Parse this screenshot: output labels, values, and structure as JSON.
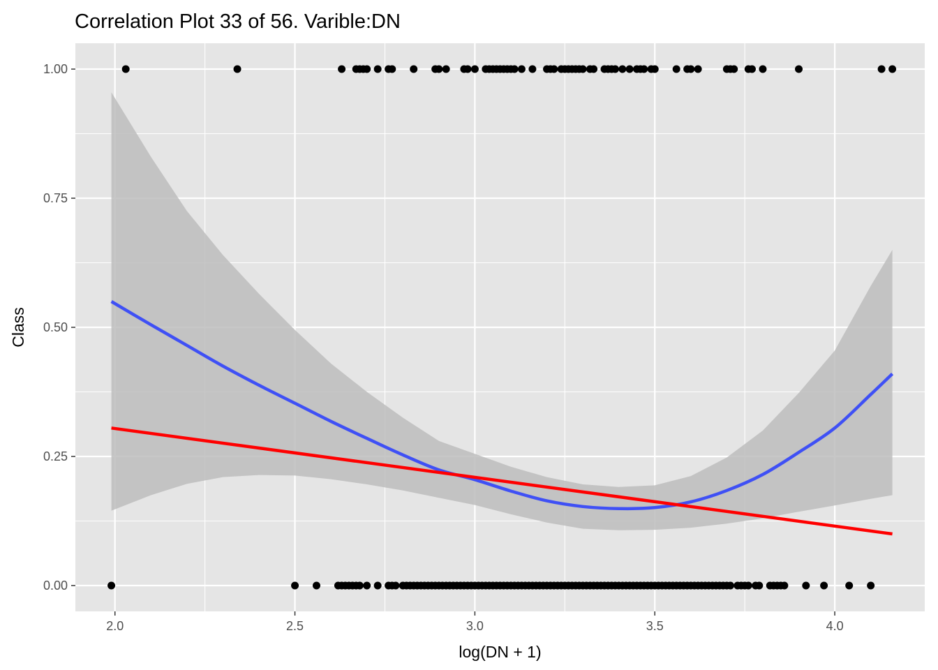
{
  "chart_data": {
    "type": "scatter",
    "title": "Correlation Plot 33 of 56. Varible:DN",
    "xlabel": "log(DN + 1)",
    "ylabel": "Class",
    "xlim": [
      1.89,
      4.25
    ],
    "ylim": [
      -0.05,
      1.05
    ],
    "x_ticks": [
      2.0,
      2.5,
      3.0,
      3.5,
      4.0
    ],
    "x_tick_labels": [
      "2.0",
      "2.5",
      "3.0",
      "3.5",
      "4.0"
    ],
    "y_ticks": [
      0.0,
      0.25,
      0.5,
      0.75,
      1.0
    ],
    "y_tick_labels": [
      "0.00",
      "0.25",
      "0.50",
      "0.75",
      "1.00"
    ],
    "grid": true,
    "colors": {
      "panel_background": "#e5e5e5",
      "grid": "#ffffff",
      "points": "#000000",
      "smooth_line": "#3f50f5",
      "linear_fit": "#ff0000",
      "ribbon": "#bdbdbd"
    },
    "points_class_1": [
      2.03,
      2.34,
      2.63,
      2.67,
      2.68,
      2.69,
      2.7,
      2.73,
      2.76,
      2.77,
      2.83,
      2.89,
      2.9,
      2.92,
      2.97,
      2.98,
      3.0,
      3.03,
      3.04,
      3.05,
      3.06,
      3.07,
      3.08,
      3.09,
      3.1,
      3.11,
      3.13,
      3.16,
      3.2,
      3.21,
      3.22,
      3.24,
      3.25,
      3.26,
      3.27,
      3.28,
      3.29,
      3.3,
      3.32,
      3.33,
      3.36,
      3.37,
      3.38,
      3.39,
      3.41,
      3.43,
      3.45,
      3.46,
      3.47,
      3.49,
      3.5,
      3.56,
      3.59,
      3.6,
      3.62,
      3.7,
      3.71,
      3.72,
      3.76,
      3.77,
      3.8,
      3.9,
      4.13,
      4.16
    ],
    "points_class_0": [
      1.99,
      2.5,
      2.56,
      2.62,
      2.63,
      2.64,
      2.65,
      2.66,
      2.67,
      2.68,
      2.7,
      2.73,
      2.76,
      2.77,
      2.78,
      2.8,
      2.81,
      2.82,
      2.83,
      2.84,
      2.85,
      2.86,
      2.87,
      2.88,
      2.89,
      2.9,
      2.91,
      2.92,
      2.93,
      2.94,
      2.95,
      2.96,
      2.97,
      2.98,
      2.99,
      3.0,
      3.01,
      3.02,
      3.03,
      3.04,
      3.05,
      3.06,
      3.07,
      3.08,
      3.09,
      3.1,
      3.11,
      3.12,
      3.13,
      3.14,
      3.15,
      3.16,
      3.17,
      3.18,
      3.19,
      3.2,
      3.21,
      3.22,
      3.23,
      3.24,
      3.25,
      3.26,
      3.27,
      3.28,
      3.29,
      3.3,
      3.31,
      3.32,
      3.33,
      3.34,
      3.35,
      3.36,
      3.37,
      3.38,
      3.39,
      3.4,
      3.41,
      3.42,
      3.43,
      3.44,
      3.45,
      3.46,
      3.47,
      3.48,
      3.49,
      3.5,
      3.51,
      3.52,
      3.53,
      3.54,
      3.55,
      3.56,
      3.57,
      3.58,
      3.59,
      3.6,
      3.61,
      3.62,
      3.63,
      3.64,
      3.65,
      3.66,
      3.67,
      3.68,
      3.69,
      3.7,
      3.71,
      3.73,
      3.74,
      3.75,
      3.76,
      3.78,
      3.79,
      3.82,
      3.83,
      3.84,
      3.85,
      3.86,
      3.92,
      3.97,
      4.04,
      4.1
    ],
    "smooth_line": {
      "x": [
        1.99,
        2.1,
        2.2,
        2.3,
        2.4,
        2.5,
        2.6,
        2.7,
        2.8,
        2.9,
        3.0,
        3.1,
        3.2,
        3.3,
        3.4,
        3.5,
        3.6,
        3.7,
        3.8,
        3.9,
        4.0,
        4.1,
        4.16
      ],
      "y": [
        0.55,
        0.505,
        0.465,
        0.425,
        0.388,
        0.353,
        0.318,
        0.285,
        0.253,
        0.224,
        0.205,
        0.183,
        0.164,
        0.153,
        0.149,
        0.151,
        0.162,
        0.184,
        0.215,
        0.258,
        0.305,
        0.37,
        0.41
      ],
      "ci_lower": [
        0.145,
        0.175,
        0.197,
        0.21,
        0.214,
        0.213,
        0.206,
        0.196,
        0.184,
        0.17,
        0.156,
        0.138,
        0.122,
        0.11,
        0.107,
        0.108,
        0.112,
        0.12,
        0.13,
        0.143,
        0.155,
        0.168,
        0.175
      ],
      "ci_upper": [
        0.955,
        0.83,
        0.725,
        0.64,
        0.565,
        0.495,
        0.43,
        0.375,
        0.325,
        0.28,
        0.255,
        0.23,
        0.21,
        0.196,
        0.191,
        0.194,
        0.212,
        0.248,
        0.3,
        0.373,
        0.455,
        0.58,
        0.65
      ]
    },
    "linear_fit": {
      "x": [
        1.99,
        4.16
      ],
      "y": [
        0.305,
        0.1
      ]
    }
  }
}
